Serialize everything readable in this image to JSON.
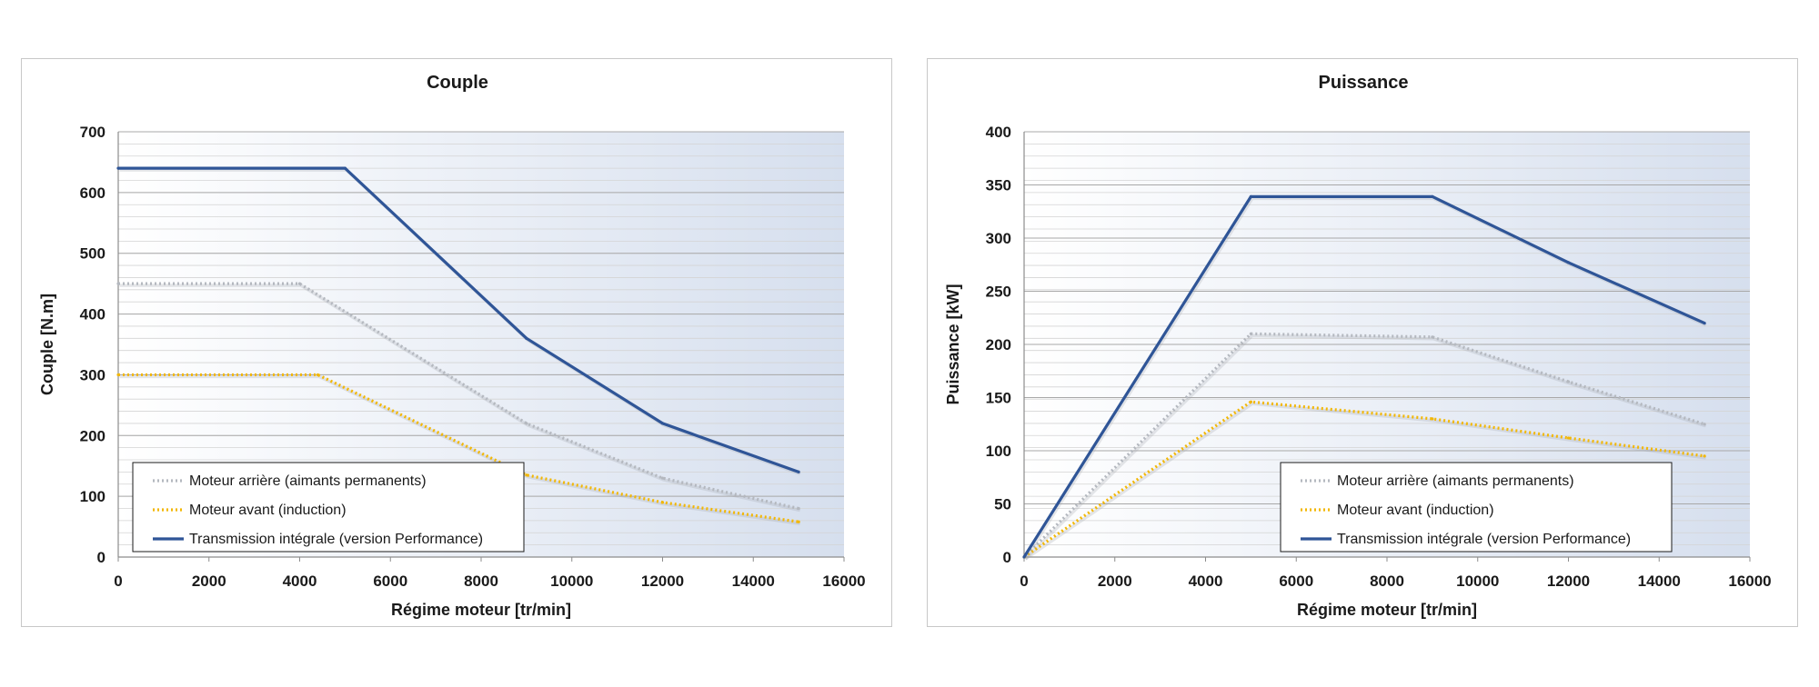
{
  "chart_data": [
    {
      "type": "line",
      "title": "Couple",
      "xlabel": "Régime moteur [tr/min]",
      "ylabel": "Couple [N.m]",
      "xlim": [
        0,
        16000
      ],
      "ylim": [
        0,
        700
      ],
      "xticks": [
        0,
        2000,
        4000,
        6000,
        8000,
        10000,
        12000,
        14000,
        16000
      ],
      "yticks": [
        0,
        100,
        200,
        300,
        400,
        500,
        600,
        700
      ],
      "grid": true,
      "legend_position": "bottom-left",
      "series": [
        {
          "name": "Moteur arrière (aimants permanents)",
          "style": "dotted",
          "color": "#b4b8bf",
          "x": [
            0,
            4000,
            9000,
            12000,
            15000
          ],
          "y": [
            450,
            450,
            220,
            130,
            80
          ]
        },
        {
          "name": "Moteur avant (induction)",
          "style": "dotted",
          "color": "#f2b705",
          "x": [
            0,
            4400,
            9000,
            12000,
            15000
          ],
          "y": [
            300,
            300,
            135,
            90,
            58
          ]
        },
        {
          "name": "Transmission intégrale (version Performance)",
          "style": "solid",
          "color": "#2f5597",
          "x": [
            0,
            5000,
            9000,
            12000,
            15000
          ],
          "y": [
            640,
            640,
            360,
            220,
            140
          ]
        }
      ]
    },
    {
      "type": "line",
      "title": "Puissance",
      "xlabel": "Régime moteur [tr/min]",
      "ylabel": "Puissance [kW]",
      "xlim": [
        0,
        16000
      ],
      "ylim": [
        0,
        400
      ],
      "xticks": [
        0,
        2000,
        4000,
        6000,
        8000,
        10000,
        12000,
        14000,
        16000
      ],
      "yticks": [
        0,
        50,
        100,
        150,
        200,
        250,
        300,
        350,
        400
      ],
      "grid": true,
      "legend_position": "bottom-right",
      "series": [
        {
          "name": "Moteur arrière (aimants permanents)",
          "style": "dotted",
          "color": "#b4b8bf",
          "x": [
            0,
            5000,
            9000,
            12000,
            15000
          ],
          "y": [
            0,
            210,
            207,
            165,
            125
          ]
        },
        {
          "name": "Moteur avant (induction)",
          "style": "dotted",
          "color": "#f2b705",
          "x": [
            0,
            5000,
            9000,
            12000,
            15000
          ],
          "y": [
            0,
            146,
            130,
            112,
            95
          ]
        },
        {
          "name": "Transmission intégrale (version Performance)",
          "style": "solid",
          "color": "#2f5597",
          "x": [
            0,
            5000,
            9000,
            12000,
            15000
          ],
          "y": [
            0,
            339,
            339,
            277,
            220
          ]
        }
      ]
    }
  ]
}
